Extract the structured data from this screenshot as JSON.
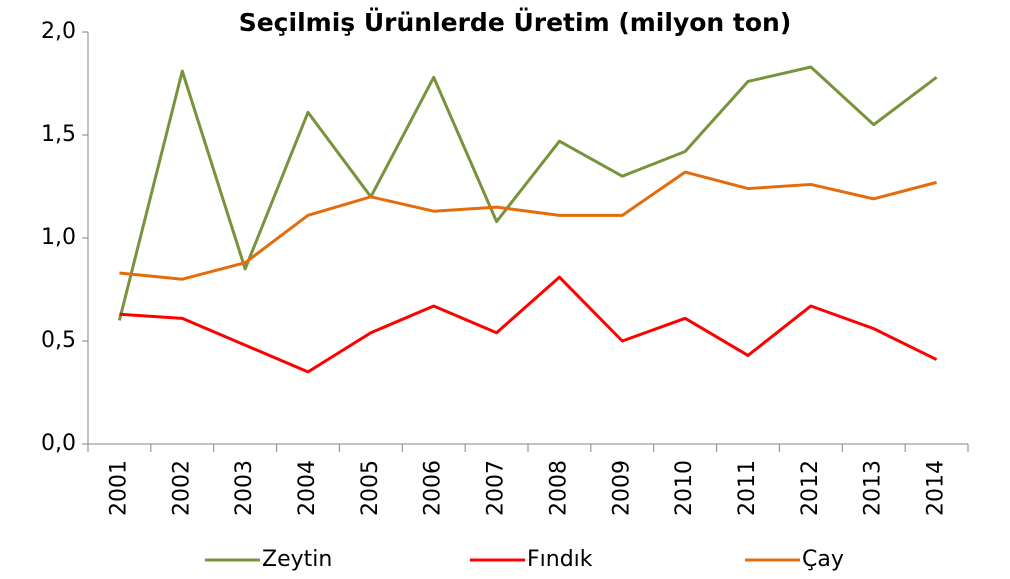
{
  "chart_data": {
    "type": "line",
    "title": "Seçilmiş Ürünlerde Üretim (milyon ton)",
    "categories": [
      "2001",
      "2002",
      "2003",
      "2004",
      "2005",
      "2006",
      "2007",
      "2008",
      "2009",
      "2010",
      "2011",
      "2012",
      "2013",
      "2014"
    ],
    "series": [
      {
        "name": "Zeytin",
        "color": "#77933c",
        "values": [
          0.6,
          1.81,
          0.85,
          1.61,
          1.2,
          1.78,
          1.08,
          1.47,
          1.3,
          1.42,
          1.76,
          1.83,
          1.55,
          1.78
        ]
      },
      {
        "name": "Fındık",
        "color": "#ff0000",
        "values": [
          0.63,
          0.61,
          0.48,
          0.35,
          0.54,
          0.67,
          0.54,
          0.81,
          0.5,
          0.61,
          0.43,
          0.67,
          0.56,
          0.41
        ]
      },
      {
        "name": "Çay",
        "color": "#e46c0a",
        "values": [
          0.83,
          0.8,
          0.88,
          1.11,
          1.2,
          1.13,
          1.15,
          1.11,
          1.11,
          1.32,
          1.24,
          1.26,
          1.19,
          1.27
        ]
      }
    ],
    "ylim": [
      0,
      2
    ],
    "yticks": [
      {
        "value": 0,
        "label": "0,0"
      },
      {
        "value": 0.5,
        "label": "0,5"
      },
      {
        "value": 1,
        "label": "1,0"
      },
      {
        "value": 1.5,
        "label": "1,5"
      },
      {
        "value": 2,
        "label": "2,0"
      }
    ],
    "grid": false,
    "legend": "bottom"
  }
}
